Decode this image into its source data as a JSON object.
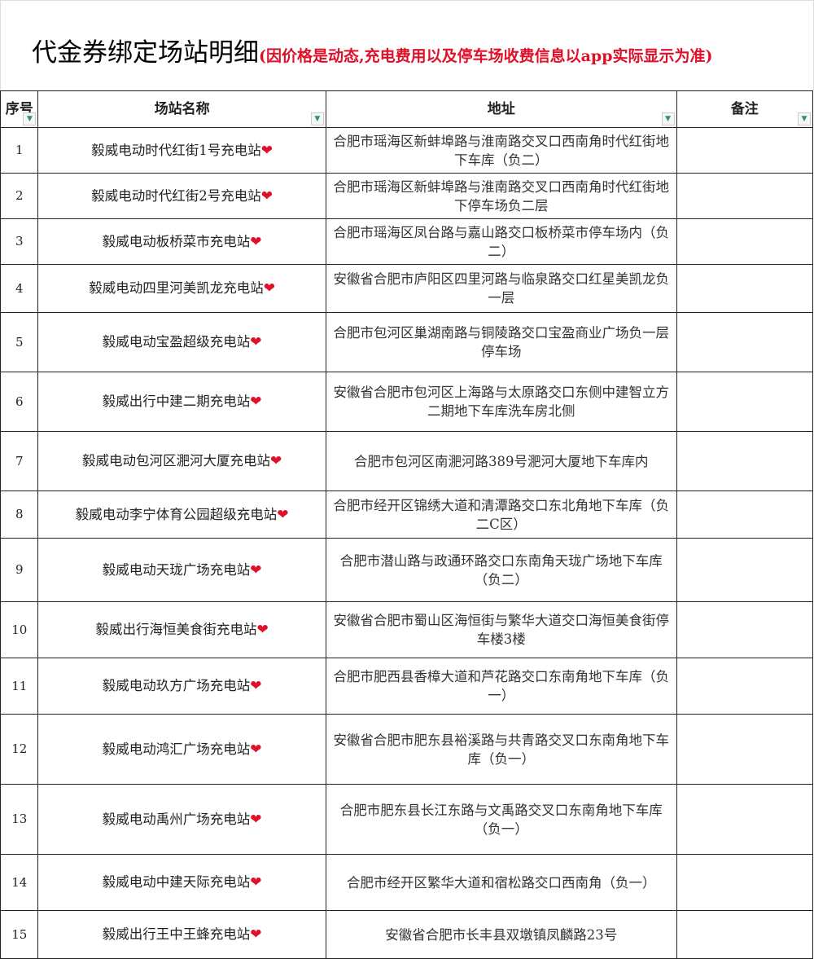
{
  "title": {
    "main": "代金券绑定场站明细",
    "note": "(因价格是动态,充电费用以及停车场收费信息以app实际显示为准)"
  },
  "columns": [
    "序号",
    "场站名称",
    "地址",
    "备注"
  ],
  "heart_icon": "❤",
  "colors": {
    "note": "#e0102a",
    "heart": "#e0102a",
    "filter_arrow": "#2a9a5a"
  },
  "rows": [
    {
      "no": "1",
      "name": "毅威电动时代红街1号充电站",
      "address": "合肥市瑶海区新蚌埠路与淮南路交叉口西南角时代红街地下车库（负二）",
      "remark": ""
    },
    {
      "no": "2",
      "name": "毅威电动时代红街2号充电站",
      "address": "合肥市瑶海区新蚌埠路与淮南路交叉口西南角时代红街地下停车场负二层",
      "remark": ""
    },
    {
      "no": "3",
      "name": "毅威电动板桥菜市充电站",
      "address": "合肥市瑶海区凤台路与嘉山路交口板桥菜市停车场内（负二）",
      "remark": ""
    },
    {
      "no": "4",
      "name": "毅威电动四里河美凯龙充电站",
      "address": "安徽省合肥市庐阳区四里河路与临泉路交口红星美凯龙负一层",
      "remark": ""
    },
    {
      "no": "5",
      "name": "毅威电动宝盈超级充电站",
      "address": "合肥市包河区巢湖南路与铜陵路交口宝盈商业广场负一层停车场",
      "remark": ""
    },
    {
      "no": "6",
      "name": "毅威出行中建二期充电站",
      "address": "安徽省合肥市包河区上海路与太原路交口东侧中建智立方二期地下车库洗车房北侧",
      "remark": ""
    },
    {
      "no": "7",
      "name": "毅威电动包河区淝河大厦充电站",
      "address": "合肥市包河区南淝河路389号淝河大厦地下车库内",
      "remark": ""
    },
    {
      "no": "8",
      "name": "毅威电动李宁体育公园超级充电站",
      "address": "合肥市经开区锦绣大道和清潭路交口东北角地下车库（负二C区）",
      "remark": ""
    },
    {
      "no": "9",
      "name": "毅威电动天珑广场充电站",
      "address": "合肥市潜山路与政通环路交口东南角天珑广场地下车库（负二）",
      "remark": ""
    },
    {
      "no": "10",
      "name": "毅威出行海恒美食街充电站",
      "address": "安徽省合肥市蜀山区海恒街与繁华大道交口海恒美食街停车楼3楼",
      "remark": ""
    },
    {
      "no": "11",
      "name": "毅威电动玖方广场充电站",
      "address": "合肥市肥西县香樟大道和芦花路交口东南角地下车库（负一）",
      "remark": ""
    },
    {
      "no": "12",
      "name": "毅威电动鸿汇广场充电站",
      "address": "安徽省合肥市肥东县裕溪路与共青路交叉口东南角地下车库（负一）",
      "remark": ""
    },
    {
      "no": "13",
      "name": "毅威电动禹州广场充电站",
      "address": "合肥市肥东县长江东路与文禹路交叉口东南角地下车库（负一）",
      "remark": ""
    },
    {
      "no": "14",
      "name": "毅威电动中建天际充电站",
      "address": "合肥市经开区繁华大道和宿松路交口西南角（负一）",
      "remark": ""
    },
    {
      "no": "15",
      "name": "毅威出行王中王蜂充电站",
      "address": "安徽省合肥市长丰县双墩镇凤麟路23号",
      "remark": ""
    }
  ]
}
